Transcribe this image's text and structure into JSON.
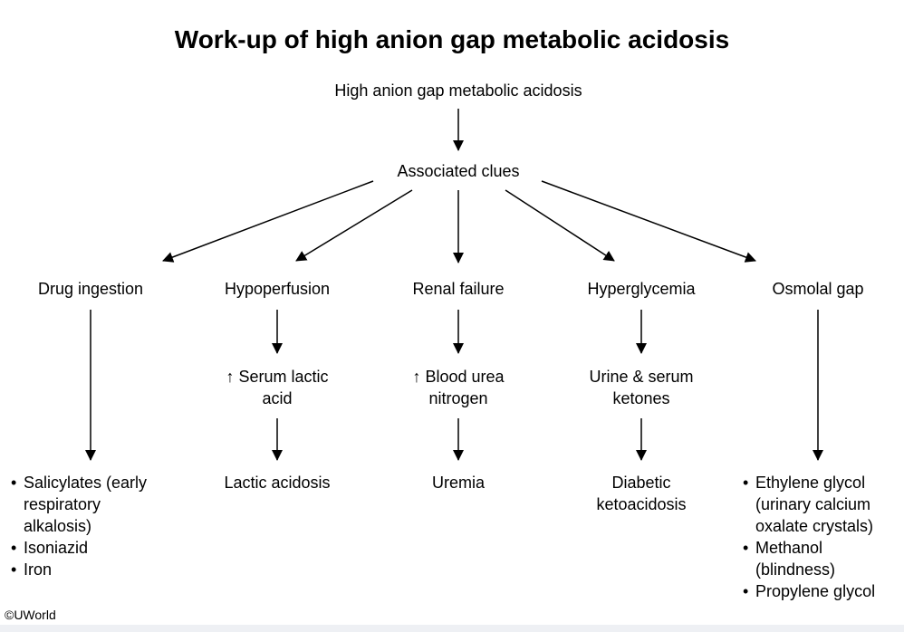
{
  "title": "Work-up of high anion gap metabolic acidosis",
  "root": "High anion gap metabolic acidosis",
  "clues": "Associated clues",
  "categories": {
    "drug": "Drug ingestion",
    "hypo": "Hypoperfusion",
    "renal": "Renal failure",
    "hyper": "Hyperglycemia",
    "osmolal": "Osmolal gap"
  },
  "findings": {
    "hypo": [
      "↑ Serum lactic",
      "acid"
    ],
    "renal": [
      "↑ Blood urea",
      "nitrogen"
    ],
    "hyper": [
      "Urine & serum",
      "ketones"
    ]
  },
  "diagnoses": {
    "drug": [
      "Salicylates (early",
      "respiratory",
      "alkalosis)",
      "Isoniazid",
      "Iron"
    ],
    "hypo": "Lactic acidosis",
    "renal": "Uremia",
    "hyper": [
      "Diabetic",
      "ketoacidosis"
    ],
    "osmolal": [
      "Ethylene glycol",
      "(urinary calcium",
      "oxalate crystals)",
      "Methanol",
      "(blindness)",
      "Propylene glycol"
    ]
  },
  "copyright": "©UWorld"
}
